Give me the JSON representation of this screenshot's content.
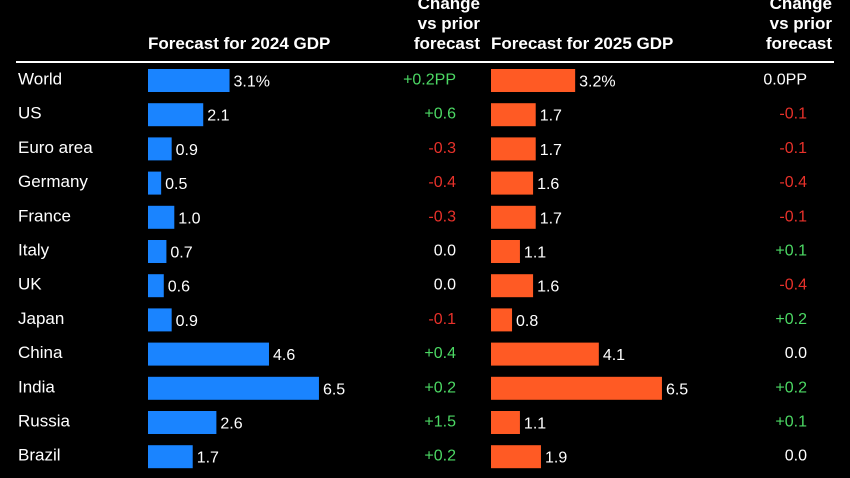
{
  "header": {
    "forecast_2024": "Forecast for 2024 GDP",
    "change_2024": [
      "Change",
      "vs prior",
      "forecast"
    ],
    "forecast_2025": "Forecast for 2025 GDP",
    "change_2025": [
      "Change",
      "vs prior",
      "forecast"
    ]
  },
  "colors": {
    "background": "#000000",
    "bar_2024": "#1a84ff",
    "bar_2025": "#ff5a24",
    "positive": "#4cd964",
    "negative": "#e8312a",
    "neutral": "#ffffff"
  },
  "chart_data": {
    "type": "bar",
    "orientation": "horizontal",
    "categories": [
      "World",
      "US",
      "Euro area",
      "Germany",
      "France",
      "Italy",
      "UK",
      "Japan",
      "China",
      "India",
      "Russia",
      "Brazil"
    ],
    "series": [
      {
        "name": "Forecast for 2024 GDP",
        "values": [
          3.1,
          2.1,
          0.9,
          0.5,
          1.0,
          0.7,
          0.6,
          0.9,
          4.6,
          6.5,
          2.6,
          1.7
        ],
        "labels": [
          "3.1%",
          "2.1",
          "0.9",
          "0.5",
          "1.0",
          "0.7",
          "0.6",
          "0.9",
          "4.6",
          "6.5",
          "2.6",
          "1.7"
        ],
        "change_labels": [
          "+0.2PP",
          "+0.6",
          "-0.3",
          "-0.4",
          "-0.3",
          "0.0",
          "0.0",
          "-0.1",
          "+0.4",
          "+0.2",
          "+1.5",
          "+0.2"
        ]
      },
      {
        "name": "Forecast for 2025 GDP",
        "values": [
          3.2,
          1.7,
          1.7,
          1.6,
          1.7,
          1.1,
          1.6,
          0.8,
          4.1,
          6.5,
          1.1,
          1.9
        ],
        "labels": [
          "3.2%",
          "1.7",
          "1.7",
          "1.6",
          "1.7",
          "1.1",
          "1.6",
          "0.8",
          "4.1",
          "6.5",
          "1.1",
          "1.9"
        ],
        "change_labels": [
          "0.0PP",
          "-0.1",
          "-0.1",
          "-0.4",
          "-0.1",
          "+0.1",
          "-0.4",
          "+0.2",
          "0.0",
          "+0.2",
          "+0.1",
          "0.0"
        ]
      }
    ],
    "xlim": [
      0,
      6.5
    ],
    "grid": false,
    "legend": "none"
  }
}
